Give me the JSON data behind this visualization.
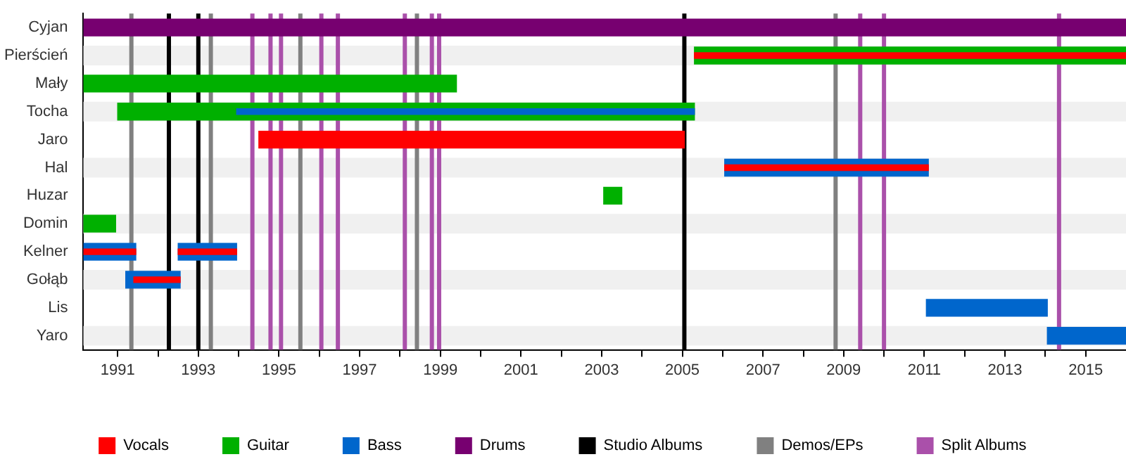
{
  "chart_data": {
    "type": "bar",
    "orientation": "horizontal",
    "categories": [
      "Cyjan",
      "Pierścień",
      "Mały",
      "Tocha",
      "Jaro",
      "Hal",
      "Huzar",
      "Domin",
      "Kelner",
      "Gołąb",
      "Lis",
      "Yaro"
    ],
    "series": [
      {
        "name": "Vocals",
        "color": "#ff0000",
        "values": [
          null,
          null,
          null,
          null,
          10.55,
          null,
          null,
          null,
          null,
          null,
          null,
          null
        ],
        "base": [
          null,
          null,
          null,
          null,
          1994.5,
          null,
          null,
          null,
          null,
          null,
          null,
          null
        ]
      },
      {
        "name": "Guitar",
        "color": "#00b000",
        "values": [
          null,
          10.7,
          9.25,
          14.3,
          null,
          null,
          0.45,
          0.8,
          null,
          null,
          null,
          null
        ],
        "base": [
          null,
          2005.3,
          1990.15,
          1991.0,
          null,
          null,
          2003.05,
          1990.15,
          null,
          null,
          null,
          null
        ]
      },
      {
        "name": "Bass",
        "color": "#0066cc",
        "values": [
          null,
          null,
          null,
          null,
          null,
          5.05,
          null,
          null,
          1.3,
          1.35,
          3.0,
          1.95
        ],
        "base": [
          null,
          null,
          null,
          null,
          null,
          2006.05,
          null,
          null,
          1990.15,
          1991.2,
          2011.05,
          2014.05
        ]
      },
      {
        "name": "Drums",
        "color": "#770070",
        "values": [
          25.85,
          null,
          null,
          null,
          null,
          null,
          null,
          null,
          null,
          null,
          null,
          null
        ],
        "base": [
          1990.15,
          null,
          null,
          null,
          null,
          null,
          null,
          null,
          null,
          null,
          null,
          null
        ]
      },
      {
        "color": "#0066cc",
        "values": [
          null,
          null,
          null,
          null,
          null,
          null,
          null,
          null,
          1.45,
          null,
          null,
          null
        ],
        "base": [
          null,
          null,
          null,
          null,
          null,
          null,
          null,
          null,
          1992.5,
          null,
          null,
          null
        ]
      },
      {
        "color": "#0066cc",
        "values": [
          null,
          null,
          null,
          11.35,
          null,
          null,
          null,
          null,
          null,
          null,
          null,
          null
        ],
        "base": [
          null,
          null,
          null,
          1993.95,
          null,
          null,
          null,
          null,
          null,
          null,
          null,
          null
        ]
      },
      {
        "color": "#ff0000",
        "values": [
          null,
          10.7,
          null,
          null,
          null,
          5.05,
          null,
          null,
          1.3,
          1.15,
          null,
          null
        ],
        "base": [
          null,
          2005.3,
          null,
          null,
          null,
          2006.05,
          null,
          null,
          1990.15,
          1991.4,
          null,
          null
        ]
      },
      {
        "color": "#ff0000",
        "values": [
          null,
          null,
          null,
          null,
          null,
          null,
          null,
          null,
          1.45,
          null,
          null,
          null
        ],
        "base": [
          null,
          null,
          null,
          null,
          null,
          null,
          null,
          null,
          1992.5,
          null,
          null,
          null
        ]
      }
    ],
    "xlim": [
      1990.15,
      2016
    ],
    "xticks": [
      1991,
      {
        "value": 1992,
        "label": null
      },
      1993,
      {
        "value": 1994,
        "label": null
      },
      1995,
      {
        "value": 1996,
        "label": null
      },
      1997,
      {
        "value": 1998,
        "label": null
      },
      1999,
      {
        "value": 2000,
        "label": null
      },
      2001,
      {
        "value": 2002,
        "label": null
      },
      2003,
      {
        "value": 2004,
        "label": null
      },
      2005,
      {
        "value": 2006,
        "label": null
      },
      2007,
      {
        "value": 2008,
        "label": null
      },
      2009,
      {
        "value": 2010,
        "label": null
      },
      2011,
      {
        "value": 2012,
        "label": null
      },
      2013,
      {
        "value": 2014,
        "label": null
      },
      2015
    ],
    "ref_lines": [
      {
        "axis": "x",
        "value": 1992.27,
        "label": "Studio Albums",
        "color": "#000000"
      },
      {
        "axis": "x",
        "value": 1993.0,
        "color": "#000000"
      },
      {
        "axis": "x",
        "value": 2005.05,
        "color": "#000000"
      },
      {
        "axis": "x",
        "value": 1991.34,
        "label": "Demos/EPs",
        "color": "#808080"
      },
      {
        "axis": "x",
        "value": 1993.31,
        "color": "#808080"
      },
      {
        "axis": "x",
        "value": 1995.53,
        "color": "#808080"
      },
      {
        "axis": "x",
        "value": 1998.42,
        "color": "#808080"
      },
      {
        "axis": "x",
        "value": 2008.8,
        "color": "#808080"
      },
      {
        "axis": "x",
        "value": 1994.34,
        "label": "Split Albums",
        "color": "#aa50aa"
      },
      {
        "axis": "x",
        "value": 1994.79,
        "color": "#aa50aa"
      },
      {
        "axis": "x",
        "value": 1995.05,
        "color": "#aa50aa"
      },
      {
        "axis": "x",
        "value": 1996.05,
        "color": "#aa50aa"
      },
      {
        "axis": "x",
        "value": 1996.46,
        "color": "#aa50aa"
      },
      {
        "axis": "x",
        "value": 1998.12,
        "color": "#aa50aa"
      },
      {
        "axis": "x",
        "value": 1998.79,
        "color": "#aa50aa"
      },
      {
        "axis": "x",
        "value": 1998.97,
        "color": "#aa50aa"
      },
      {
        "axis": "x",
        "value": 2009.41,
        "color": "#aa50aa"
      },
      {
        "axis": "x",
        "value": 2010.0,
        "color": "#aa50aa"
      },
      {
        "axis": "x",
        "value": 2014.34,
        "color": "#aa50aa"
      }
    ],
    "legend": "bottom"
  }
}
